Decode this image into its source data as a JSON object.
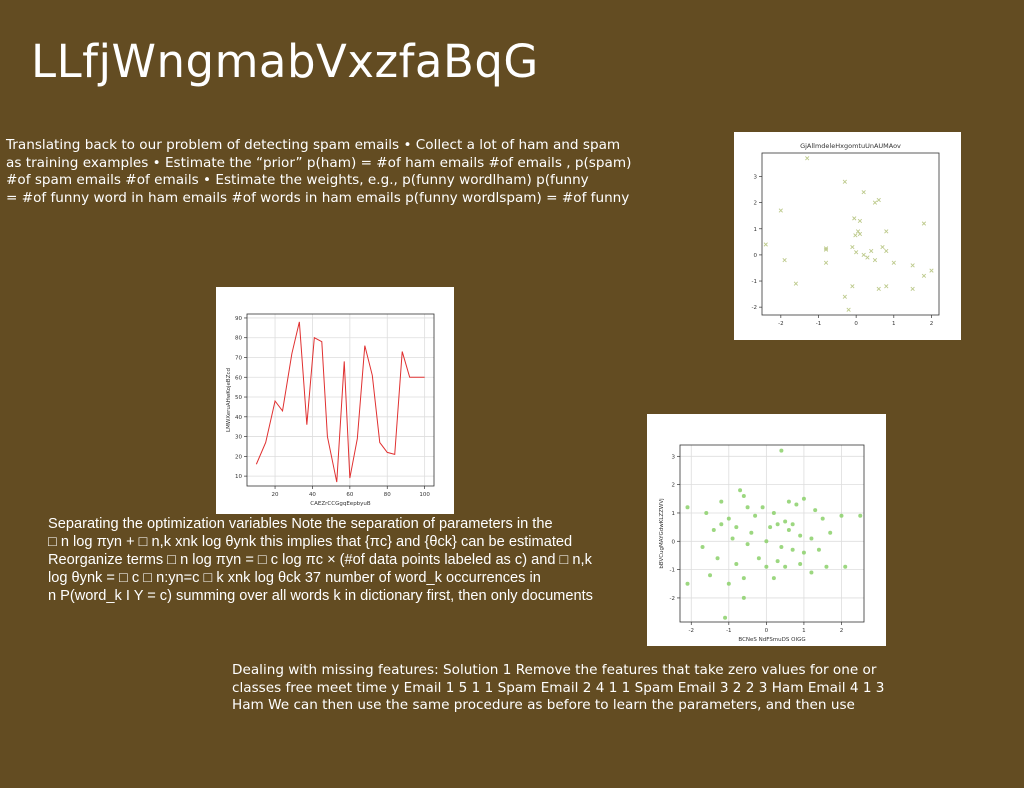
{
  "slide": {
    "title": "LLfjWngmabVxzfaBqG",
    "paragraphs": [
      "Translating back to our problem of detecting spam emails • Collect a lot of ham and spam\nas training examples • Estimate the “prior” p(ham) = #of ham emails #of emails , p(spam)\n#of spam emails #of emails • Estimate the weights, e.g., p(funny wordlham) p(funny\n= #of funny word in ham emails #of words in ham emails p(funny wordlspam) = #of funny",
      "Separating the optimization variables Note the separation of parameters in the\n□ n log πyn + □ n,k xnk log θynk this implies that {πc} and {θck} can be estimated\nReorganize terms □ n log πyn = □ c log πc × (#of data points labeled as c) and □ n,k\nlog θynk = □ c □ n:yn=c □ k xnk log θck 37 number of word_k occurrences in\nn P(word_k I Y = c) summing over all words k in dictionary first, then only documents",
      "Dealing with missing features: Solution 1 Remove the features that take zero values for one or\nclasses free meet time y Email 1 5 1 1 Spam Email 2 4 1 1 Spam Email 3 2 2 3 Ham Email 4 1 3\nHam We can then use the same procedure as before to learn the parameters, and then use"
    ]
  },
  "chart_data": [
    {
      "type": "scatter",
      "title": "GjAllmdeleHxgomtuUnAUMAov",
      "xlabel": "",
      "ylabel": "",
      "marker": "x",
      "color": "#bcc98a",
      "xlim": [
        -2.5,
        2.2
      ],
      "ylim": [
        -2.3,
        3.9
      ],
      "xticks": [
        -2,
        -1,
        0,
        1,
        2
      ],
      "yticks": [
        -2,
        -1,
        0,
        1,
        2,
        3
      ],
      "grid": false,
      "points": [
        [
          -1.3,
          3.7
        ],
        [
          -0.3,
          2.8
        ],
        [
          0.2,
          2.4
        ],
        [
          0.5,
          2.0
        ],
        [
          0.6,
          2.1
        ],
        [
          -2.0,
          1.7
        ],
        [
          1.8,
          1.2
        ],
        [
          -0.05,
          1.4
        ],
        [
          0.1,
          1.3
        ],
        [
          0.05,
          0.9
        ],
        [
          0.1,
          0.8
        ],
        [
          0.8,
          0.9
        ],
        [
          -0.02,
          0.75
        ],
        [
          -2.4,
          0.4
        ],
        [
          -0.8,
          0.2
        ],
        [
          -0.8,
          0.25
        ],
        [
          -0.1,
          0.3
        ],
        [
          0.4,
          0.15
        ],
        [
          0.7,
          0.3
        ],
        [
          0.8,
          0.15
        ],
        [
          0.2,
          0.0
        ],
        [
          0.0,
          0.1
        ],
        [
          -1.9,
          -0.2
        ],
        [
          -0.8,
          -0.3
        ],
        [
          0.3,
          -0.1
        ],
        [
          0.5,
          -0.2
        ],
        [
          1.0,
          -0.3
        ],
        [
          1.5,
          -0.4
        ],
        [
          2.0,
          -0.6
        ],
        [
          1.8,
          -0.8
        ],
        [
          -1.6,
          -1.1
        ],
        [
          -0.1,
          -1.2
        ],
        [
          0.8,
          -1.2
        ],
        [
          0.6,
          -1.3
        ],
        [
          1.5,
          -1.3
        ],
        [
          -0.3,
          -1.6
        ],
        [
          -0.2,
          -2.1
        ]
      ]
    },
    {
      "type": "line",
      "title": "",
      "xlabel": "CAEZrCCGgqEepbyuB",
      "ylabel": "LMWXeruAHwKojeBZcd",
      "color": "#e03030",
      "xlim": [
        5,
        105
      ],
      "ylim": [
        5,
        92
      ],
      "xticks": [
        20,
        40,
        60,
        80,
        100
      ],
      "yticks": [
        10,
        20,
        30,
        40,
        50,
        60,
        70,
        80,
        90
      ],
      "grid": true,
      "x": [
        10,
        15,
        20,
        24,
        29,
        33,
        37,
        41,
        45,
        48,
        53,
        57,
        60,
        64,
        68,
        72,
        76,
        80,
        84,
        88,
        92,
        96,
        100
      ],
      "y": [
        16,
        27,
        48,
        43,
        72,
        88,
        36,
        80,
        78,
        30,
        7,
        68,
        9,
        29,
        76,
        61,
        27,
        22,
        21,
        73,
        60,
        60,
        60
      ]
    },
    {
      "type": "scatter",
      "title": "",
      "xlabel": "BCNeS NdFSmuDS OIGG",
      "ylabel": "bBVCugMAYGdwKLZZWVj",
      "marker": "o",
      "color": "#8bd06a",
      "xlim": [
        -2.3,
        2.6
      ],
      "ylim": [
        -2.85,
        3.4
      ],
      "xticks": [
        -2,
        -1,
        0,
        1,
        2
      ],
      "yticks": [
        -2,
        -1,
        0,
        1,
        2,
        3
      ],
      "grid": true,
      "points": [
        [
          0.4,
          3.2
        ],
        [
          -0.7,
          1.8
        ],
        [
          -0.6,
          1.6
        ],
        [
          -1.2,
          1.4
        ],
        [
          0.6,
          1.4
        ],
        [
          0.8,
          1.3
        ],
        [
          1.0,
          1.5
        ],
        [
          1.3,
          1.1
        ],
        [
          -2.1,
          1.2
        ],
        [
          -1.6,
          1.0
        ],
        [
          -1.0,
          0.8
        ],
        [
          -0.5,
          1.2
        ],
        [
          -0.1,
          1.2
        ],
        [
          0.2,
          1.0
        ],
        [
          0.5,
          0.7
        ],
        [
          1.5,
          0.8
        ],
        [
          2.0,
          0.9
        ],
        [
          2.5,
          0.9
        ],
        [
          -1.4,
          0.4
        ],
        [
          -1.2,
          0.6
        ],
        [
          -0.8,
          0.5
        ],
        [
          -0.4,
          0.3
        ],
        [
          0.1,
          0.5
        ],
        [
          0.3,
          0.6
        ],
        [
          0.6,
          0.4
        ],
        [
          0.9,
          0.2
        ],
        [
          1.2,
          0.1
        ],
        [
          1.7,
          0.3
        ],
        [
          -1.7,
          -0.2
        ],
        [
          -0.9,
          0.1
        ],
        [
          -0.5,
          -0.1
        ],
        [
          0.0,
          0.0
        ],
        [
          0.4,
          -0.2
        ],
        [
          0.7,
          -0.3
        ],
        [
          1.0,
          -0.4
        ],
        [
          1.4,
          -0.3
        ],
        [
          -1.3,
          -0.6
        ],
        [
          -0.8,
          -0.8
        ],
        [
          -0.2,
          -0.6
        ],
        [
          0.3,
          -0.7
        ],
        [
          0.9,
          -0.8
        ],
        [
          1.6,
          -0.9
        ],
        [
          -2.1,
          -1.5
        ],
        [
          -1.0,
          -1.5
        ],
        [
          -0.6,
          -1.3
        ],
        [
          0.2,
          -1.3
        ],
        [
          1.2,
          -1.1
        ],
        [
          -0.6,
          -2.0
        ],
        [
          -1.1,
          -2.7
        ],
        [
          0.5,
          -0.9
        ],
        [
          0.0,
          -0.9
        ],
        [
          2.1,
          -0.9
        ],
        [
          -0.3,
          0.9
        ],
        [
          0.7,
          0.6
        ],
        [
          -1.5,
          -1.2
        ]
      ]
    }
  ]
}
